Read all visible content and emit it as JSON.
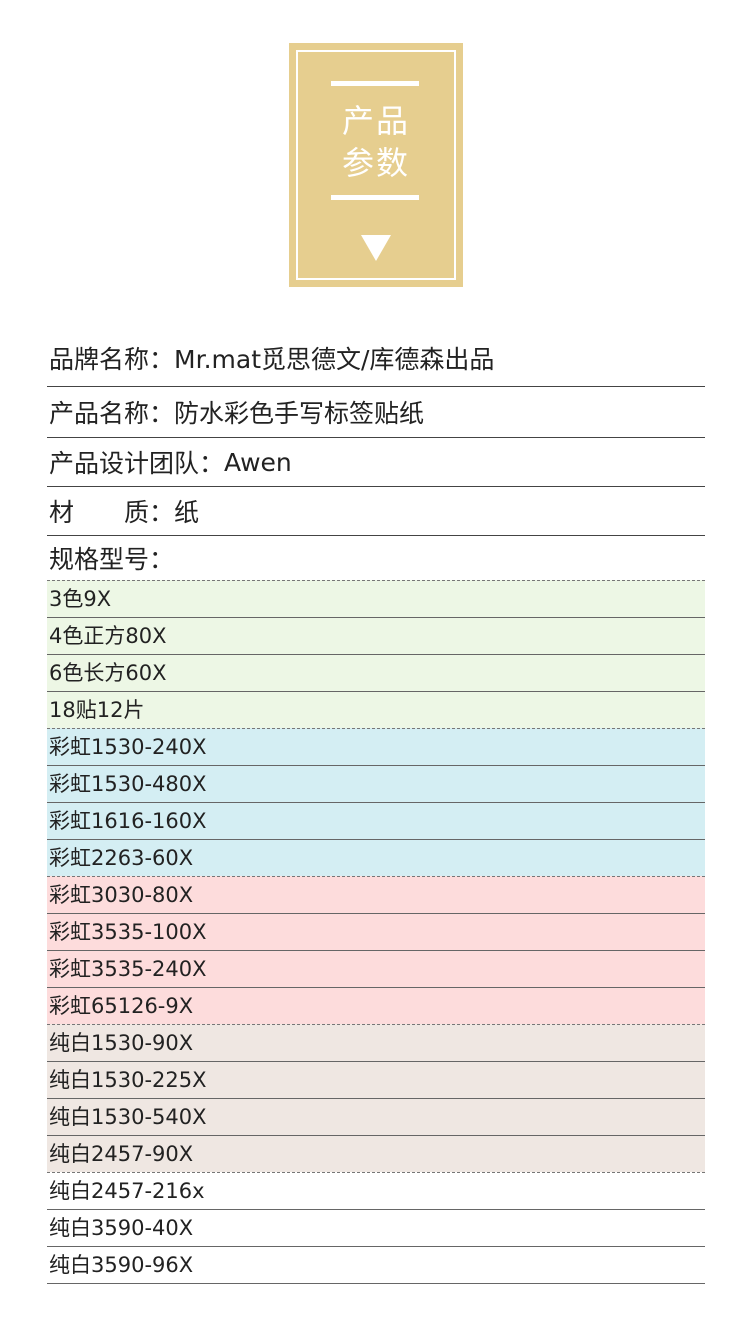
{
  "badge": {
    "line1": "产品",
    "line2": "参数",
    "color": "#e6ce8f",
    "icon": "triangle-down-icon"
  },
  "info": [
    {
      "label": "品牌名称：",
      "value": "Mr.mat觅思德文/库德森出品"
    },
    {
      "label": "产品名称：",
      "value": "防水彩色手写标签贴纸"
    },
    {
      "label": "产品设计团队：",
      "value": "Awen"
    },
    {
      "label": "材　　质：",
      "value": "纸"
    },
    {
      "label": "规格型号：",
      "value": ""
    }
  ],
  "spec_groups": [
    {
      "color": "#edf7e5",
      "items": [
        "3色9X",
        "4色正方80X",
        "6色长方60X",
        "18贴12片"
      ]
    },
    {
      "color": "#d4eef3",
      "items": [
        "彩虹1530-240X",
        "彩虹1530-480X",
        "彩虹1616-160X",
        "彩虹2263-60X"
      ]
    },
    {
      "color": "#fddcdc",
      "items": [
        "彩虹3030-80X",
        "彩虹3535-100X",
        "彩虹3535-240X",
        "彩虹65126-9X"
      ]
    },
    {
      "color": "#efe7e2",
      "items": [
        "纯白1530-90X",
        "纯白1530-225X",
        "纯白1530-540X",
        "纯白2457-90X"
      ]
    },
    {
      "color": "#ffffff",
      "items": [
        "纯白2457-216x",
        "纯白3590-40X",
        "纯白3590-96X"
      ]
    }
  ]
}
